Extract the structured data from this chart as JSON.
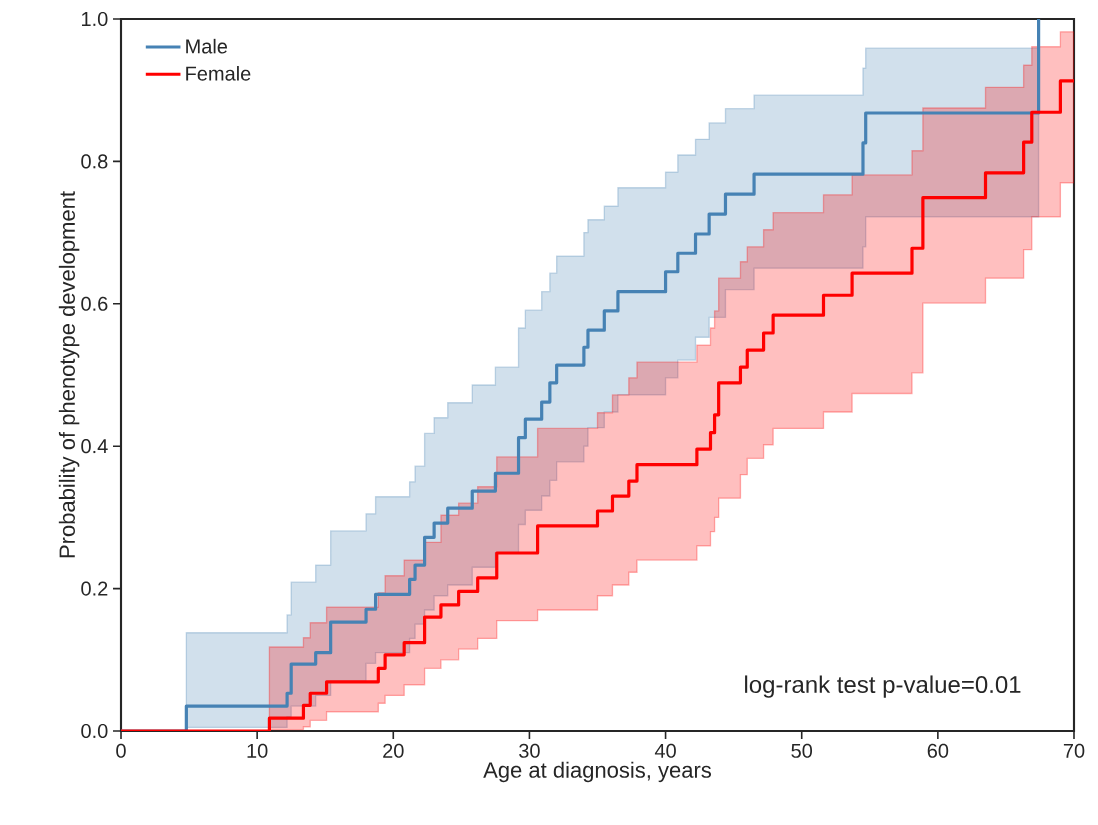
{
  "chart_data": {
    "type": "step",
    "xlabel": "Age at diagnosis, years",
    "ylabel": "Probability of phenotype development",
    "xlim": [
      0,
      70
    ],
    "ylim": [
      0,
      1
    ],
    "xticks": [
      0,
      10,
      20,
      30,
      40,
      50,
      60,
      70
    ],
    "yticks": [
      {
        "value": 0,
        "label": "0.0"
      },
      {
        "value": 0.2,
        "label": "0.2"
      },
      {
        "value": 0.4,
        "label": "0.4"
      },
      {
        "value": 0.6,
        "label": "0.6"
      },
      {
        "value": 0.8,
        "label": "0.8"
      },
      {
        "value": 1,
        "label": "1.0"
      }
    ],
    "legend": "top left",
    "annotations": [
      "log-rank test p-value=0.01"
    ],
    "series": [
      {
        "name": "Male",
        "color": "#4682b4",
        "x": [
          0,
          4.8,
          12.2,
          12.5,
          14.3,
          15.4,
          18.0,
          18.7,
          21.2,
          21.6,
          22.3,
          23.0,
          24.0,
          25.8,
          27.5,
          29.2,
          29.7,
          30.9,
          31.5,
          32.0,
          34.0,
          34.3,
          35.5,
          36.5,
          40.0,
          40.9,
          42.2,
          43.2,
          44.4,
          46.5,
          54.5,
          54.7,
          67.4
        ],
        "values": [
          0,
          0.035,
          0.053,
          0.094,
          0.11,
          0.153,
          0.171,
          0.192,
          0.213,
          0.233,
          0.272,
          0.292,
          0.313,
          0.337,
          0.362,
          0.412,
          0.438,
          0.462,
          0.489,
          0.514,
          0.539,
          0.563,
          0.59,
          0.617,
          0.645,
          0.671,
          0.698,
          0.726,
          0.754,
          0.782,
          0.826,
          0.868,
          1.0
        ],
        "lower": [
          null,
          0.005,
          0.02,
          0.035,
          0.05,
          0.07,
          0.095,
          0.11,
          0.13,
          0.15,
          0.17,
          0.19,
          0.205,
          0.23,
          0.25,
          0.29,
          0.31,
          0.33,
          0.352,
          0.378,
          0.4,
          0.426,
          0.448,
          0.472,
          0.496,
          0.521,
          0.553,
          0.581,
          0.62,
          0.65,
          0.68,
          0.722,
          0.722
        ],
        "upper": [
          null,
          0.138,
          0.163,
          0.209,
          0.233,
          0.281,
          0.305,
          0.329,
          0.35,
          0.372,
          0.418,
          0.44,
          0.461,
          0.486,
          0.511,
          0.566,
          0.591,
          0.617,
          0.643,
          0.667,
          0.7,
          0.718,
          0.737,
          0.763,
          0.785,
          0.809,
          0.831,
          0.854,
          0.874,
          0.893,
          0.931,
          0.959,
          0.959
        ]
      },
      {
        "name": "Female",
        "color": "#ff0000",
        "x": [
          0,
          10.9,
          13.4,
          13.9,
          15.1,
          18.9,
          19.4,
          20.8,
          22.3,
          23.5,
          24.8,
          26.2,
          27.6,
          30.6,
          35.0,
          36.1,
          37.3,
          37.9,
          42.3,
          43.3,
          43.6,
          43.9,
          45.5,
          46.0,
          47.2,
          47.9,
          51.6,
          53.7,
          58.1,
          58.9,
          63.5,
          66.3,
          66.9,
          69.0,
          70
        ],
        "values": [
          0,
          0.018,
          0.036,
          0.053,
          0.069,
          0.088,
          0.107,
          0.124,
          0.16,
          0.177,
          0.196,
          0.215,
          0.25,
          0.288,
          0.309,
          0.33,
          0.351,
          0.374,
          0.396,
          0.419,
          0.444,
          0.489,
          0.511,
          0.535,
          0.559,
          0.584,
          0.612,
          0.643,
          0.678,
          0.749,
          0.784,
          0.827,
          0.869,
          0.913,
          0.913
        ],
        "lower": [
          null,
          0.002,
          0.006,
          0.015,
          0.027,
          0.039,
          0.05,
          0.065,
          0.088,
          0.1,
          0.115,
          0.13,
          0.155,
          0.17,
          0.19,
          0.205,
          0.223,
          0.24,
          0.26,
          0.28,
          0.3,
          0.327,
          0.36,
          0.383,
          0.402,
          0.425,
          0.448,
          0.474,
          0.503,
          0.601,
          0.636,
          0.676,
          0.722,
          0.77,
          0.77
        ],
        "upper": [
          null,
          0.118,
          0.131,
          0.152,
          0.174,
          0.194,
          0.218,
          0.24,
          0.265,
          0.303,
          0.32,
          0.343,
          0.385,
          0.425,
          0.447,
          0.472,
          0.496,
          0.518,
          0.542,
          0.566,
          0.59,
          0.636,
          0.659,
          0.68,
          0.704,
          0.728,
          0.753,
          0.781,
          0.815,
          0.875,
          0.904,
          0.935,
          0.961,
          0.982,
          0.982
        ]
      }
    ]
  }
}
